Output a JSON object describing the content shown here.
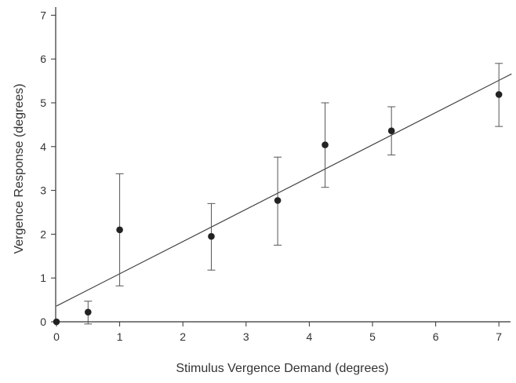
{
  "chart_data": {
    "type": "scatter",
    "title": "",
    "xlabel": "Stimulus Vergence Demand (degrees)",
    "ylabel": "Vergence Response (degrees)",
    "xlim": [
      0,
      7.2
    ],
    "ylim": [
      0,
      7.2
    ],
    "x_ticks": [
      "0",
      "1",
      "2",
      "3",
      "4",
      "5",
      "6",
      "7"
    ],
    "y_ticks": [
      "0",
      "1",
      "2",
      "3",
      "4",
      "5",
      "6",
      "7"
    ],
    "grid": false,
    "legend": "none",
    "point_color": "#222222",
    "line_color": "#444444",
    "series": [
      {
        "points": [
          {
            "x": 0.0,
            "y": 0.0,
            "err_low": 0.0,
            "err_high": 0.0
          },
          {
            "x": 0.5,
            "y": 0.22,
            "err_low": -0.05,
            "err_high": 0.47
          },
          {
            "x": 1.0,
            "y": 2.1,
            "err_low": 0.82,
            "err_high": 3.38
          },
          {
            "x": 2.45,
            "y": 1.95,
            "err_low": 1.18,
            "err_high": 2.7
          },
          {
            "x": 3.5,
            "y": 2.77,
            "err_low": 1.75,
            "err_high": 3.76
          },
          {
            "x": 4.25,
            "y": 4.04,
            "err_low": 3.07,
            "err_high": 5.0
          },
          {
            "x": 5.3,
            "y": 4.36,
            "err_low": 3.81,
            "err_high": 4.91
          },
          {
            "x": 7.0,
            "y": 5.19,
            "err_low": 4.46,
            "err_high": 5.9
          }
        ]
      }
    ],
    "fit_line": {
      "x0": 0.0,
      "y0": 0.36,
      "x1": 7.2,
      "y1": 5.66
    }
  }
}
